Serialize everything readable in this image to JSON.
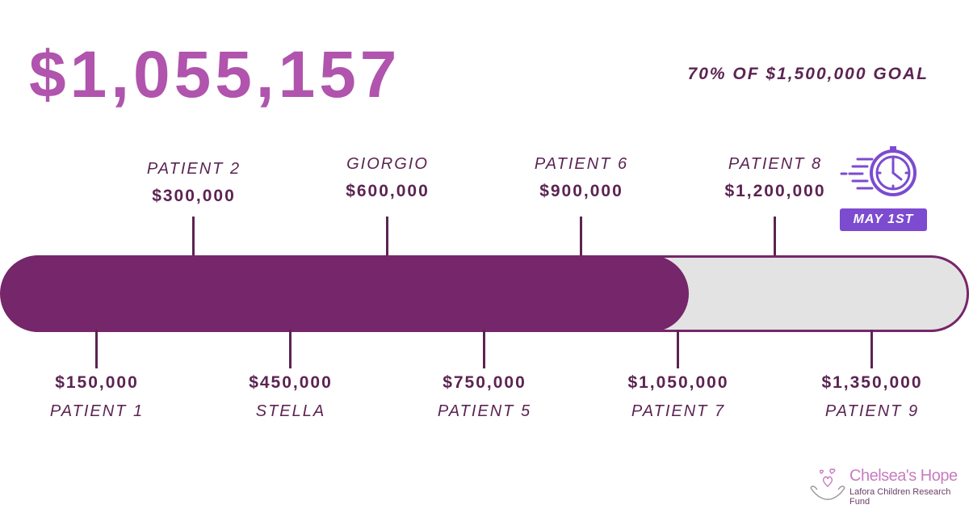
{
  "header": {
    "total_raised": "$1,055,157",
    "goal_text": "70% OF $1,500,000 GOAL"
  },
  "progress": {
    "raised_value": 1055157,
    "goal_value": 1500000,
    "fraction": 0.703
  },
  "milestones_top": [
    {
      "name": "PATIENT 2",
      "amount": "$300,000",
      "value": 300000
    },
    {
      "name": "GIORGIO",
      "amount": "$600,000",
      "value": 600000
    },
    {
      "name": "PATIENT 6",
      "amount": "$900,000",
      "value": 900000
    },
    {
      "name": "PATIENT 8",
      "amount": "$1,200,000",
      "value": 1200000
    }
  ],
  "milestones_bottom": [
    {
      "name": "PATIENT 1",
      "amount": "$150,000",
      "value": 150000
    },
    {
      "name": "STELLA",
      "amount": "$450,000",
      "value": 450000
    },
    {
      "name": "PATIENT 5",
      "amount": "$750,000",
      "value": 750000
    },
    {
      "name": "PATIENT 7",
      "amount": "$1,050,000",
      "value": 1050000
    },
    {
      "name": "PATIENT 9",
      "amount": "$1,350,000",
      "value": 1350000
    }
  ],
  "deadline": {
    "label": "MAY 1ST",
    "icon": "fast-clock-icon"
  },
  "logo": {
    "name": "Chelsea's Hope",
    "subtitle": "Lafora Children Research Fund",
    "icon": "hands-hearts-icon"
  },
  "colors": {
    "accent_total": "#b054ad",
    "bar_fill": "#76266a",
    "bar_track": "#e3e3e3",
    "text_dark": "#5b2452",
    "badge": "#7c4bd0"
  }
}
